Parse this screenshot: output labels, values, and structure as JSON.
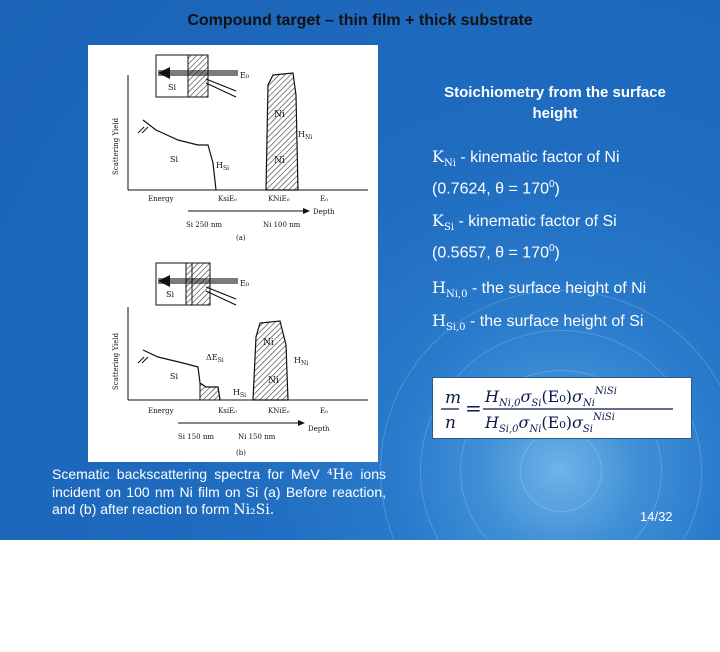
{
  "title": "Compound target – thin film + thick substrate",
  "caption": {
    "text_1": "Scematic backscattering spectra for MeV ",
    "he": "⁴He",
    "text_2": " ions incident on 100 nm Ni film on Si (a) Before reaction, and (b) after reaction to form ",
    "ni2si": "Ni₂Si."
  },
  "right_heading": "Stoichiometry from the surface height",
  "definitions": {
    "k_ni_sym": "K",
    "k_ni_sub": "Ni",
    "k_ni_text": " - kinematic factor of Ni",
    "k_ni_val": "(0.7624, θ = 170",
    "k_ni_exp": "0",
    "k_ni_close": ")",
    "k_si_sym": "K",
    "k_si_sub": "Si",
    "k_si_text": " - kinematic factor of Si",
    "k_si_val": "(0.5657, θ = 170",
    "k_si_exp": "0",
    "k_si_close": ")",
    "h_ni_sym": "H",
    "h_ni_sub": "Ni,0",
    "h_ni_text": " - the surface height of Ni",
    "h_si_sym": "H",
    "h_si_sub": "Si,0",
    "h_si_text": " - the surface height of Si"
  },
  "formula": {
    "lhs_num": "m",
    "lhs_den": "n",
    "eq": "=",
    "num": "H",
    "num_sub": "Ni,0",
    "num_sigma1": "σ",
    "num_sigma1_sub": "Si",
    "num_paren": "(E₀)",
    "num_sigma2": "σ",
    "num_sigma2_sub": "Ni",
    "num_sigma2_sup": "NiSi",
    "den": "H",
    "den_sub": "Si,0",
    "den_sigma1": "σ",
    "den_sigma1_sub": "Ni",
    "den_paren": "(E₀)",
    "den_sigma2": "σ",
    "den_sigma2_sub": "Si",
    "den_sigma2_sup": "NiSi"
  },
  "figure": {
    "a": {
      "e0": "E₀",
      "ni_label": "Ni",
      "si_label": "Si",
      "ni_peak": "Ni",
      "hni": "H",
      "hni_sub": "Ni",
      "hsi": "H",
      "hsi_sub": "Si",
      "yaxis": "Scattering Yield",
      "energy": "Energy",
      "x1": "KsiE₀",
      "x2": "KNiE₀",
      "x3": "E₀",
      "depth": "Depth",
      "si_depth": "Si 250 nm",
      "ni_depth": "Ni 100 nm",
      "panel": "(a)"
    },
    "b": {
      "e0": "E₀",
      "si_label": "Si",
      "ni_label": "Ni",
      "ni_peak": "Ni",
      "si_region": "Si",
      "desi": "ΔE",
      "desi_sub": "Si",
      "hni": "H",
      "hni_sub": "Ni",
      "hsi": "H",
      "hsi_sub": "Si",
      "yaxis": "Scattering Yield",
      "energy": "Energy",
      "x1": "KsiE₀",
      "x2": "KNiE₀",
      "x3": "E₀",
      "depth": "Depth",
      "si_depth": "Si 150 nm",
      "ni_depth": "Ni 150 nm",
      "panel": "(b)"
    }
  },
  "page_number": "14/32"
}
